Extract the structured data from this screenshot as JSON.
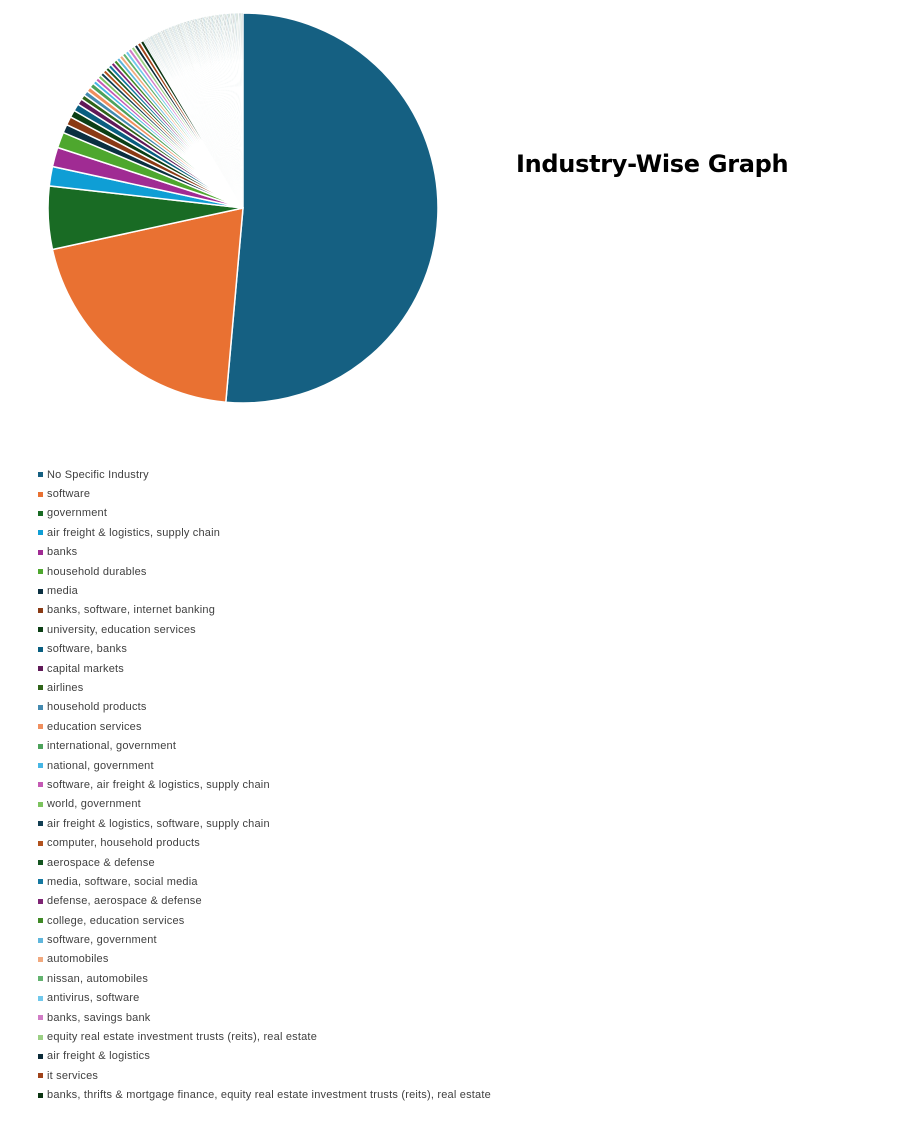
{
  "chart_data": {
    "type": "pie",
    "title": "Industry-Wise Graph",
    "legend_position": "bottom-left",
    "categories": [
      "No Specific Industry",
      "software",
      "government",
      "air freight & logistics, supply chain",
      "banks",
      "household durables",
      "media",
      "banks, software, internet banking",
      "university, education services",
      "software, banks",
      "capital markets",
      "airlines",
      "household products",
      "education services",
      "international, government",
      "national, government",
      "software, air freight & logistics, supply chain",
      "world, government",
      "air freight & logistics, software, supply chain",
      "computer, household products",
      "aerospace & defense",
      "media, software, social media",
      "defense, aerospace & defense",
      "college, education services",
      "software, government",
      "automobiles",
      "nissan, automobiles",
      "antivirus, software",
      "banks, savings bank",
      "equity real estate investment trusts (reits), real estate",
      "air freight & logistics",
      "it services",
      "banks, thrifts & mortgage finance, equity real estate investment trusts (reits), real estate"
    ],
    "values": [
      51.2,
      20.1,
      5.2,
      1.6,
      1.6,
      1.3,
      0.7,
      0.7,
      0.6,
      0.6,
      0.5,
      0.4,
      0.4,
      0.4,
      0.4,
      0.3,
      0.3,
      0.3,
      0.3,
      0.3,
      0.3,
      0.3,
      0.3,
      0.3,
      0.3,
      0.3,
      0.3,
      0.3,
      0.3,
      0.3,
      0.3,
      0.3,
      0.3
    ],
    "colors": [
      "#156082",
      "#e97132",
      "#196b24",
      "#0f9ed5",
      "#a02b93",
      "#4ea72e",
      "#0b3041",
      "#8a3a14",
      "#0c3f15",
      "#095e80",
      "#601a58",
      "#2f6418",
      "#448ab0",
      "#f08f5e",
      "#4ca25a",
      "#46b6e5",
      "#c459b4",
      "#7cc35e",
      "#123f54",
      "#b2521e",
      "#145520",
      "#1478a0",
      "#7e2474",
      "#3f8a26",
      "#5fb6dc",
      "#f1a97e",
      "#63b36f",
      "#70c8ec",
      "#d17cc6",
      "#9bd084",
      "#0a2a38",
      "#a0431a",
      "#0b3512"
    ],
    "remainder_value": 8.5,
    "remainder_note": ""
  }
}
